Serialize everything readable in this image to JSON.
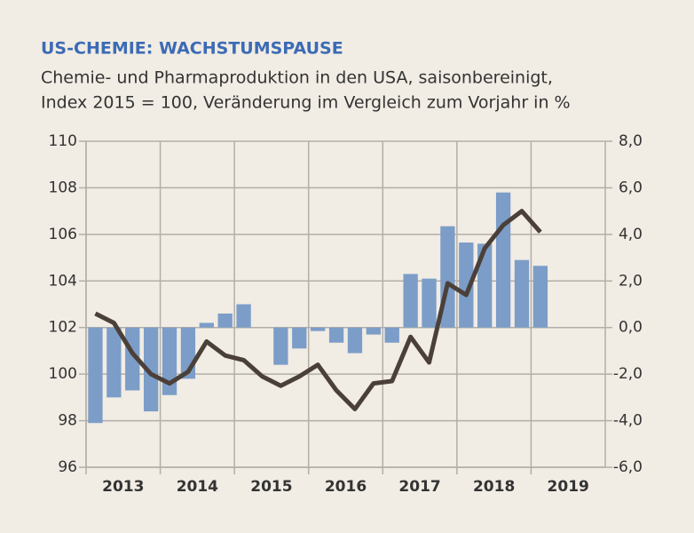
{
  "chart_data": {
    "type": "bar-line",
    "title": "US-CHEMIE: WACHSTUMSPAUSE",
    "subtitle": [
      "Chemie- und Pharmaproduktion in den USA, saisonbereinigt,",
      "Index 2015 = 100, Veränderung im Vergleich zum Vorjahr in %"
    ],
    "x": [
      2013.125,
      2013.375,
      2013.625,
      2013.875,
      2014.125,
      2014.375,
      2014.625,
      2014.875,
      2015.125,
      2015.375,
      2015.625,
      2015.875,
      2016.125,
      2016.375,
      2016.625,
      2016.875,
      2017.125,
      2017.375,
      2017.625,
      2017.875,
      2018.125,
      2018.375,
      2018.625,
      2018.875,
      2019.125
    ],
    "xlim": [
      2013,
      2020
    ],
    "xticks": [
      2013,
      2014,
      2015,
      2016,
      2017,
      2018,
      2019
    ],
    "ylim": [
      96,
      110
    ],
    "yticks": [
      96,
      98,
      100,
      102,
      104,
      106,
      108,
      110
    ],
    "y2lim": [
      -6,
      8
    ],
    "y2ticks": [
      {
        "value": -6,
        "label": "-6,0"
      },
      {
        "value": -4,
        "label": "-4,0"
      },
      {
        "value": -2,
        "label": "-2,0"
      },
      {
        "value": 0,
        "label": "0,0"
      },
      {
        "value": 2,
        "label": "2,0"
      },
      {
        "value": 4,
        "label": "4,0"
      },
      {
        "value": 6,
        "label": "6,0"
      },
      {
        "value": 8,
        "label": "8,0"
      }
    ],
    "grid": true,
    "series": [
      {
        "type": "bar",
        "axis": "y2",
        "color": "#7b9dc8",
        "values": [
          -4.1,
          -3.0,
          -2.7,
          -3.6,
          -2.9,
          -2.2,
          0.2,
          0.6,
          1.0,
          0.0,
          -1.6,
          -0.9,
          -0.15,
          -0.65,
          -1.1,
          -0.3,
          -0.65,
          2.3,
          2.1,
          4.35,
          3.65,
          3.6,
          5.8,
          2.9,
          2.65
        ]
      },
      {
        "type": "line",
        "axis": "y",
        "color": "#4b4039",
        "values": [
          102.6,
          102.2,
          100.9,
          100.0,
          99.6,
          100.1,
          101.4,
          100.8,
          100.6,
          99.9,
          99.5,
          99.9,
          100.4,
          99.3,
          98.5,
          99.6,
          99.7,
          101.6,
          100.5,
          103.9,
          103.4,
          105.4,
          106.4,
          107.0,
          106.1
        ]
      }
    ]
  }
}
